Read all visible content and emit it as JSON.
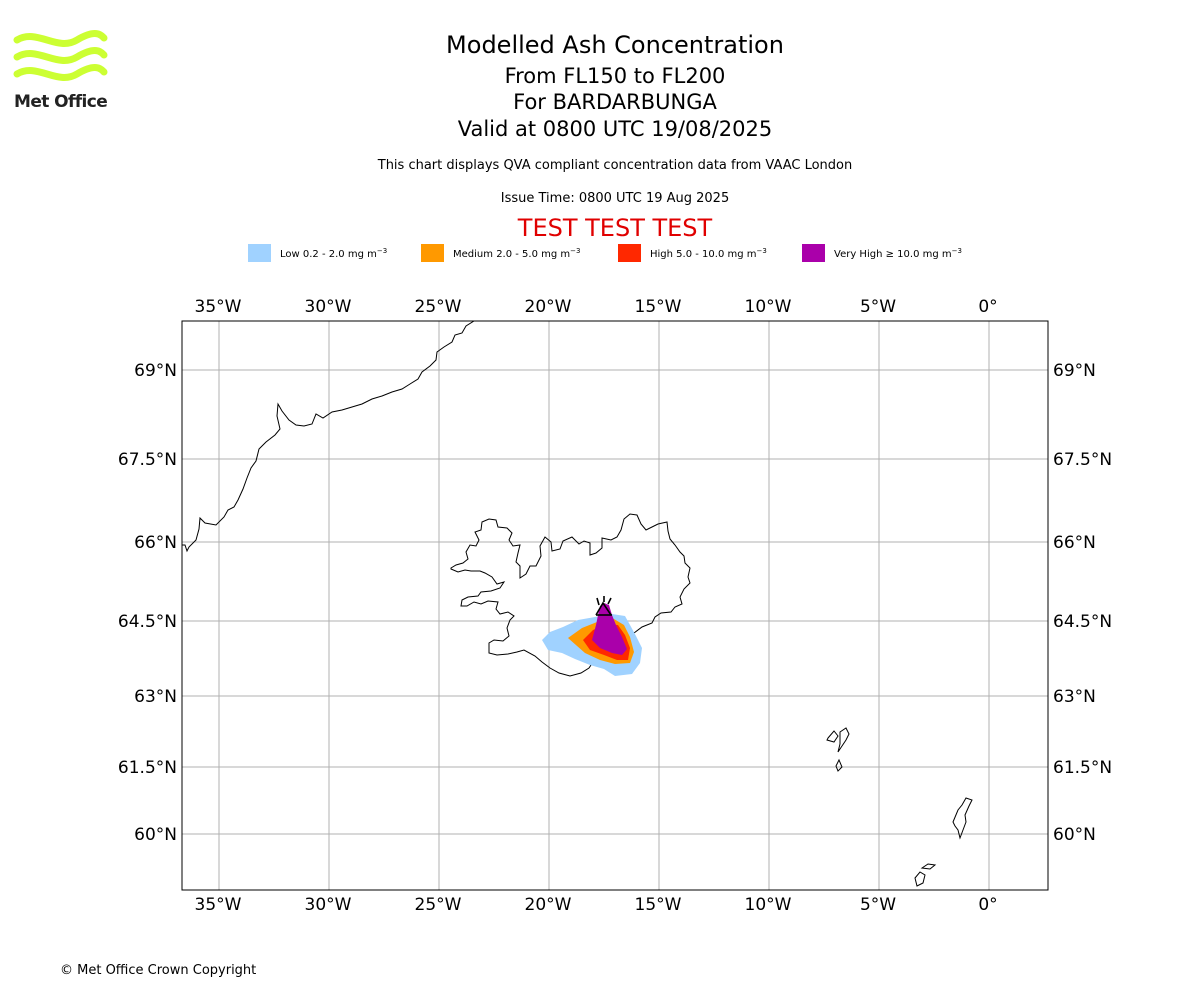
{
  "logo": {
    "text": "Met Office",
    "color": "#ccff33"
  },
  "header": {
    "title": "Modelled Ash Concentration",
    "levels": "From FL150 to FL200",
    "volcano": "For BARDARBUNGA",
    "valid": "Valid at 0800 UTC 19/08/2025",
    "source_note": "This chart displays QVA compliant concentration data from VAAC London",
    "issue_time": "Issue Time: 0800 UTC 19 Aug 2025",
    "test_banner": "TEST TEST TEST"
  },
  "legend": [
    {
      "name": "Low",
      "range": "0.2 - 2.0 mg m",
      "color": "#a0d2ff"
    },
    {
      "name": "Medium",
      "range": "2.0 - 5.0 mg m",
      "color": "#ff9900"
    },
    {
      "name": "High",
      "range": "5.0 - 10.0 mg m",
      "color": "#ff2800"
    },
    {
      "name": "Very High",
      "range": "≥ 10.0 mg m",
      "color": "#aa00aa"
    }
  ],
  "unit_exponent": "−3",
  "map": {
    "lon_ticks": [
      "35°W",
      "30°W",
      "25°W",
      "20°W",
      "15°W",
      "10°W",
      "5°W",
      "0°"
    ],
    "lat_ticks": [
      "69°N",
      "67.5°N",
      "66°N",
      "64.5°N",
      "63°N",
      "61.5°N",
      "60°N"
    ],
    "lon_range": [
      -36.7,
      2.7
    ],
    "lat_range": [
      59.0,
      69.9
    ],
    "grid": true,
    "grid_color": "#b0b0b0",
    "coastline_color": "#000000",
    "volcano_marker": "volcano-icon"
  },
  "footer": {
    "copyright": "© Met Office Crown Copyright"
  }
}
